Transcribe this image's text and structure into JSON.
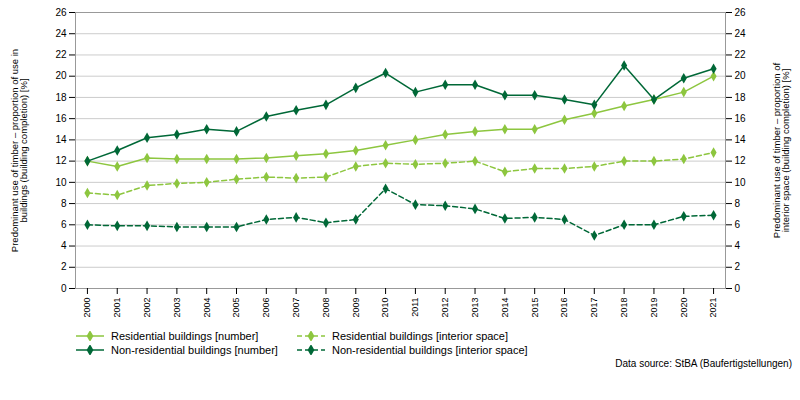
{
  "chart_data": {
    "type": "line",
    "x": [
      2000,
      2001,
      2002,
      2003,
      2004,
      2005,
      2006,
      2007,
      2008,
      2009,
      2010,
      2011,
      2012,
      2013,
      2014,
      2015,
      2016,
      2017,
      2018,
      2019,
      2020,
      2021
    ],
    "xlim": [
      1999.6,
      2021.4
    ],
    "xticks": [
      2000,
      2001,
      2002,
      2003,
      2004,
      2005,
      2006,
      2007,
      2008,
      2009,
      2010,
      2011,
      2012,
      2013,
      2014,
      2015,
      2016,
      2017,
      2018,
      2019,
      2020,
      2021
    ],
    "ylim": [
      0,
      26
    ],
    "yticks": [
      0,
      2,
      4,
      6,
      8,
      10,
      12,
      14,
      16,
      18,
      20,
      22,
      24,
      26
    ],
    "y2lim": [
      0,
      26
    ],
    "y2ticks": [
      0,
      2,
      4,
      6,
      8,
      10,
      12,
      14,
      16,
      18,
      20,
      22,
      24,
      26
    ],
    "ylabel": "Predominant use of timber – proportion of use in\nbuildings (building completion) [%]",
    "y2label": "Predominant use of timber – proportion of\ninterior space (building completion) [%]",
    "annotation": "Data source: StBA (Baufertigstellungen)",
    "grid": "y",
    "legend": "bottom",
    "series": [
      {
        "name": "Residential buildings [number]",
        "color": "#8dc63f",
        "line_style": "solid",
        "marker": "diamond",
        "values": [
          12.0,
          11.5,
          12.3,
          12.2,
          12.2,
          12.2,
          12.3,
          12.5,
          12.7,
          13.0,
          13.5,
          14.0,
          14.5,
          14.8,
          15.0,
          15.0,
          15.9,
          16.5,
          17.2,
          17.8,
          18.5,
          20.0
        ]
      },
      {
        "name": "Residential buildings [interior space]",
        "color": "#8dc63f",
        "line_style": "dashed",
        "marker": "diamond",
        "values": [
          9.0,
          8.8,
          9.7,
          9.9,
          10.0,
          10.3,
          10.5,
          10.4,
          10.5,
          11.5,
          11.8,
          11.7,
          11.8,
          12.0,
          11.0,
          11.3,
          11.3,
          11.5,
          12.0,
          12.0,
          12.2,
          12.8
        ]
      },
      {
        "name": "Non-residential buildings [number]",
        "color": "#006837",
        "line_style": "solid",
        "marker": "diamond",
        "values": [
          12.0,
          13.0,
          14.2,
          14.5,
          15.0,
          14.8,
          16.2,
          16.8,
          17.3,
          18.9,
          20.3,
          18.5,
          19.2,
          19.2,
          18.2,
          18.2,
          17.8,
          17.3,
          21.0,
          17.8,
          19.8,
          20.7
        ]
      },
      {
        "name": "Non-residential buildings [interior space]",
        "color": "#006837",
        "line_style": "dashed",
        "marker": "diamond",
        "values": [
          6.0,
          5.9,
          5.9,
          5.8,
          5.8,
          5.8,
          6.5,
          6.7,
          6.2,
          6.5,
          9.4,
          7.9,
          7.8,
          7.5,
          6.6,
          6.7,
          6.5,
          5.0,
          6.0,
          6.0,
          6.8,
          6.9
        ]
      }
    ]
  }
}
